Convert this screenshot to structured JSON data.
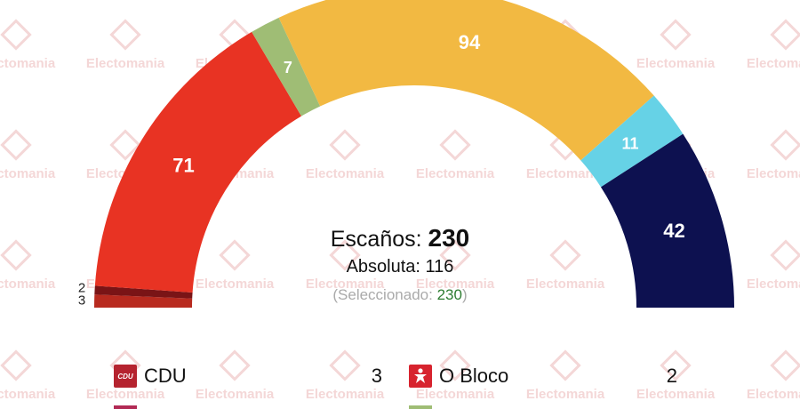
{
  "watermark": "Electomania",
  "center": {
    "seats_label": "Escaños:",
    "seats_total": "230",
    "majority_label": "Absoluta: 116",
    "selected_prefix": "(Seleccionado: ",
    "selected_value": "230",
    "selected_suffix": ")"
  },
  "chart_data": {
    "type": "parliament-semicircle",
    "total": 230,
    "segments": [
      {
        "value": 3,
        "label": "3",
        "color": "#b82a1f"
      },
      {
        "value": 2,
        "label": "2",
        "color": "#7a1416"
      },
      {
        "value": 71,
        "label": "71",
        "color": "#e83323"
      },
      {
        "value": 7,
        "label": "7",
        "color": "#9fbd75"
      },
      {
        "value": 94,
        "label": "94",
        "color": "#f2b942"
      },
      {
        "value": 11,
        "label": "11",
        "color": "#66d2e6"
      },
      {
        "value": 42,
        "label": "42",
        "color": "#0d1150"
      }
    ]
  },
  "legend": [
    {
      "name": "CDU",
      "count": "3",
      "logo_text": "CDU",
      "color": "#b5232f",
      "icon": "cdu-logo-icon"
    },
    {
      "name": "O Bloco",
      "count": "2",
      "color": "#d7232e",
      "icon": "bloco-star-icon"
    }
  ],
  "bottom_strip_colors": [
    "#b22a55",
    "#9fbd75"
  ]
}
